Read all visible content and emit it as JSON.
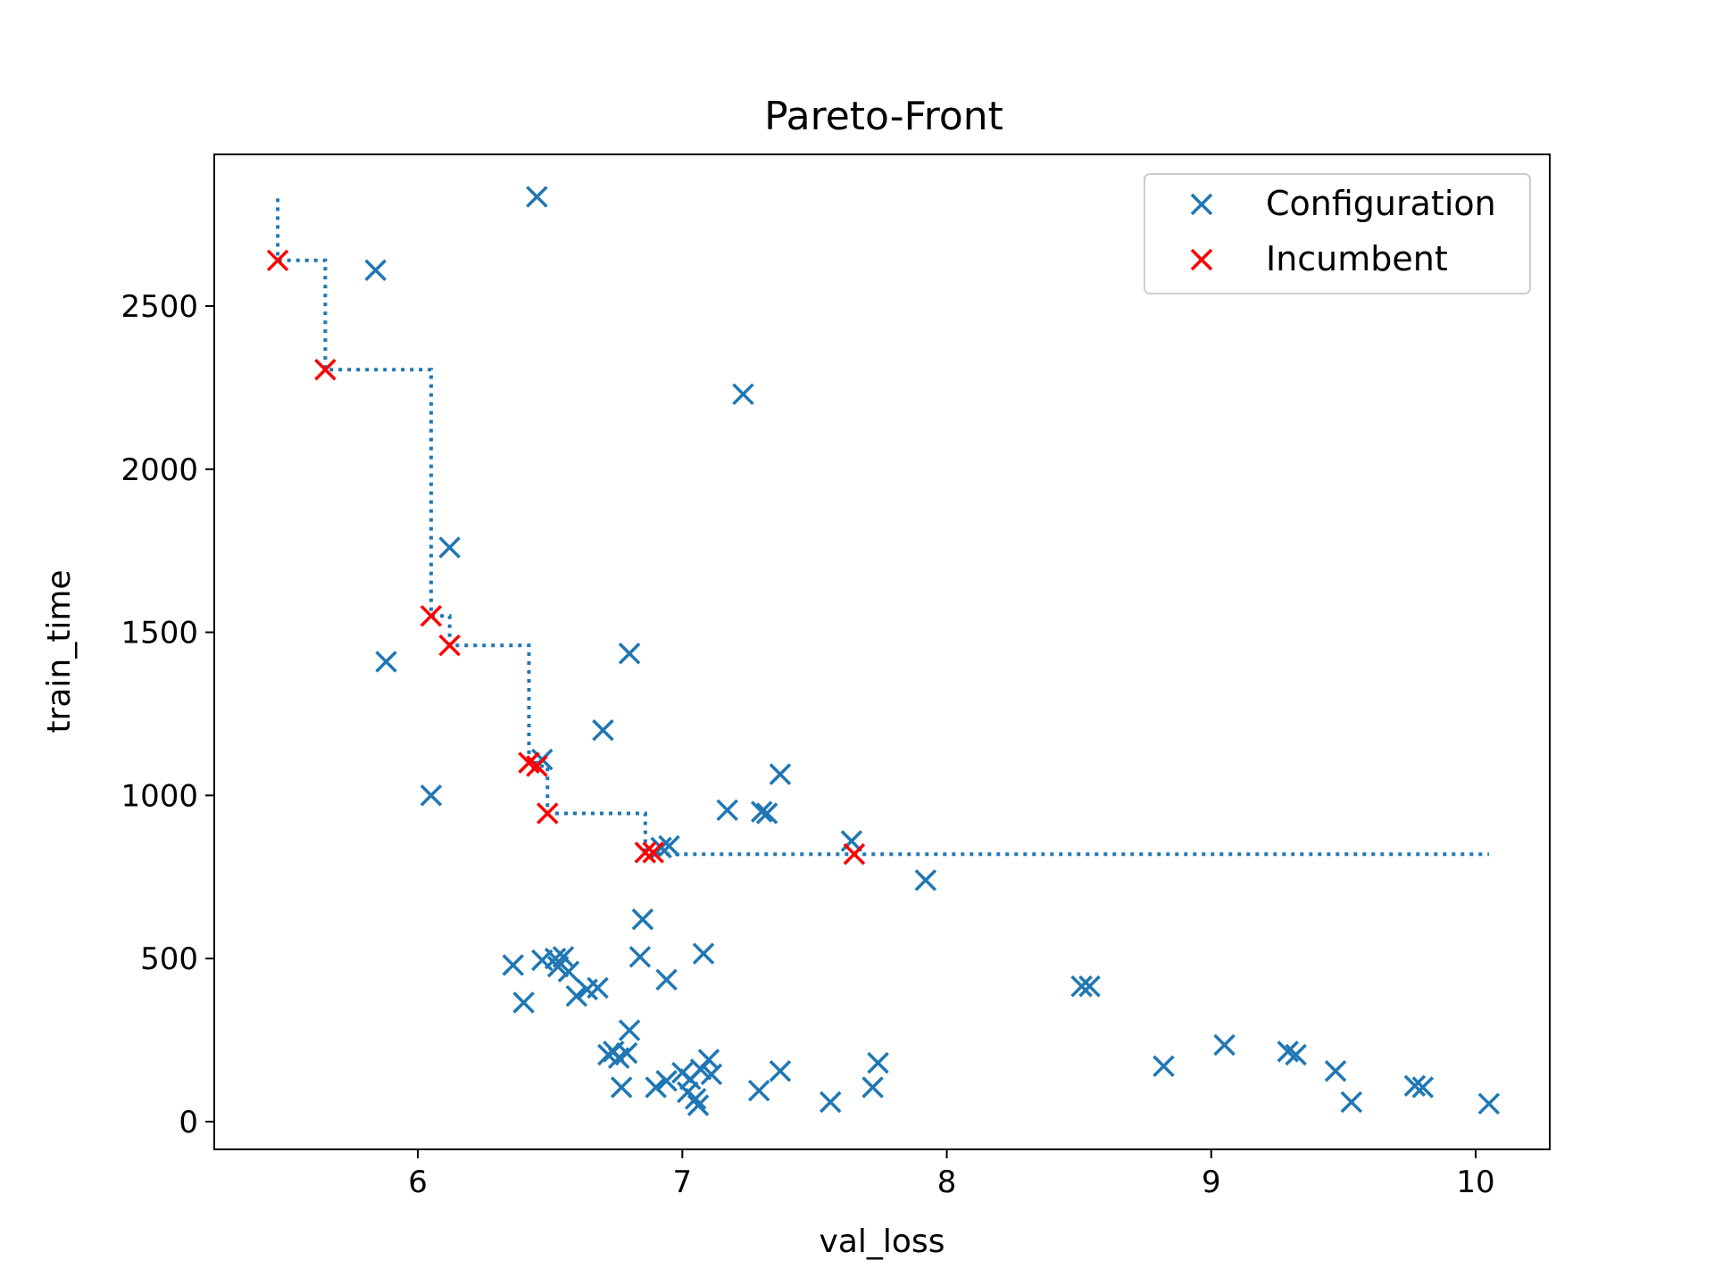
{
  "chart_data": {
    "type": "scatter",
    "title": "Pareto-Front",
    "xlabel": "val_loss",
    "ylabel": "train_time",
    "xlim": [
      5.23,
      10.28
    ],
    "ylim": [
      -85,
      2965
    ],
    "xticks": [
      "6",
      "7",
      "8",
      "9",
      "10"
    ],
    "yticks": [
      "0",
      "500",
      "1000",
      "1500",
      "2000",
      "2500"
    ],
    "grid": false,
    "legend_position": "top-right",
    "series": [
      {
        "name": "Configuration",
        "color": "#1f77b4",
        "marker": "x",
        "points": [
          [
            6.45,
            2835
          ],
          [
            5.84,
            2610
          ],
          [
            7.23,
            2230
          ],
          [
            6.12,
            1760
          ],
          [
            5.88,
            1410
          ],
          [
            6.8,
            1435
          ],
          [
            6.7,
            1200
          ],
          [
            6.05,
            1000
          ],
          [
            6.47,
            1110
          ],
          [
            7.37,
            1065
          ],
          [
            7.17,
            955
          ],
          [
            7.3,
            950
          ],
          [
            7.32,
            945
          ],
          [
            6.95,
            845
          ],
          [
            6.92,
            840
          ],
          [
            7.64,
            860
          ],
          [
            7.92,
            740
          ],
          [
            6.85,
            620
          ],
          [
            6.84,
            505
          ],
          [
            7.08,
            515
          ],
          [
            6.36,
            480
          ],
          [
            6.47,
            495
          ],
          [
            6.52,
            500
          ],
          [
            6.55,
            505
          ],
          [
            6.53,
            475
          ],
          [
            6.57,
            460
          ],
          [
            6.6,
            385
          ],
          [
            6.64,
            405
          ],
          [
            6.68,
            410
          ],
          [
            6.4,
            365
          ],
          [
            6.94,
            435
          ],
          [
            8.51,
            415
          ],
          [
            8.54,
            415
          ],
          [
            6.8,
            280
          ],
          [
            6.72,
            205
          ],
          [
            6.74,
            215
          ],
          [
            6.76,
            195
          ],
          [
            6.79,
            210
          ],
          [
            6.77,
            105
          ],
          [
            6.9,
            105
          ],
          [
            6.94,
            125
          ],
          [
            7.0,
            150
          ],
          [
            7.02,
            90
          ],
          [
            7.05,
            70
          ],
          [
            7.06,
            50
          ],
          [
            7.07,
            160
          ],
          [
            7.1,
            190
          ],
          [
            7.11,
            145
          ],
          [
            7.03,
            130
          ],
          [
            7.29,
            95
          ],
          [
            7.37,
            155
          ],
          [
            7.56,
            60
          ],
          [
            7.72,
            105
          ],
          [
            7.74,
            180
          ],
          [
            8.82,
            170
          ],
          [
            9.05,
            235
          ],
          [
            9.29,
            215
          ],
          [
            9.32,
            205
          ],
          [
            9.47,
            155
          ],
          [
            9.53,
            60
          ],
          [
            9.77,
            110
          ],
          [
            9.8,
            105
          ],
          [
            10.05,
            55
          ]
        ]
      },
      {
        "name": "Incumbent",
        "color": "#ff0000",
        "marker": "x",
        "points": [
          [
            5.47,
            2640
          ],
          [
            5.65,
            2305
          ],
          [
            6.05,
            1550
          ],
          [
            6.12,
            1460
          ],
          [
            6.42,
            1100
          ],
          [
            6.45,
            1090
          ],
          [
            6.49,
            945
          ],
          [
            6.86,
            825
          ],
          [
            6.89,
            825
          ],
          [
            7.65,
            820
          ]
        ]
      }
    ],
    "pareto_line": {
      "color": "#1f77b4",
      "style": "dotted",
      "points": [
        [
          5.47,
          2830
        ],
        [
          5.47,
          2640
        ],
        [
          5.65,
          2640
        ],
        [
          5.65,
          2305
        ],
        [
          6.05,
          2305
        ],
        [
          6.05,
          1550
        ],
        [
          6.12,
          1550
        ],
        [
          6.12,
          1460
        ],
        [
          6.42,
          1460
        ],
        [
          6.42,
          1100
        ],
        [
          6.45,
          1100
        ],
        [
          6.45,
          1090
        ],
        [
          6.49,
          1090
        ],
        [
          6.49,
          945
        ],
        [
          6.86,
          945
        ],
        [
          6.86,
          825
        ],
        [
          6.89,
          825
        ],
        [
          6.89,
          820
        ],
        [
          10.05,
          820
        ]
      ]
    }
  }
}
